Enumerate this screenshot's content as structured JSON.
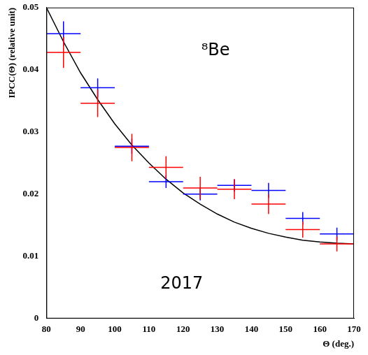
{
  "chart_data": {
    "type": "scatter",
    "x_label": "Θ (deg.)",
    "y_label": "IPCC(Θ) (relative unit)",
    "annotations": [
      "⁸Be",
      "2017"
    ],
    "xlim": [
      80,
      170
    ],
    "xticks": [
      80,
      90,
      100,
      110,
      120,
      130,
      140,
      150,
      160,
      170
    ],
    "ylim": [
      0,
      0.05
    ],
    "yticks": [
      0,
      0.01,
      0.02,
      0.03,
      0.04,
      0.05
    ],
    "grid": false,
    "series": [
      {
        "color": "#0000ff",
        "x": [
          85,
          95,
          105,
          115,
          125,
          135,
          145,
          155,
          165
        ],
        "values": [
          0.0458,
          0.0371,
          0.0277,
          0.022,
          0.02,
          0.0214,
          0.0206,
          0.0161,
          0.0136
        ],
        "x_errors": [
          5,
          5,
          5,
          5,
          5,
          5,
          5,
          5,
          5
        ],
        "errors": [
          0.002,
          0.0015,
          0.0012,
          0.001,
          0.001,
          0.001,
          0.0012,
          0.001,
          0.001
        ]
      },
      {
        "color": "#ff0000",
        "x": [
          85,
          95,
          105,
          115,
          125,
          135,
          145,
          155,
          165
        ],
        "values": [
          0.0428,
          0.0346,
          0.0275,
          0.0243,
          0.021,
          0.0208,
          0.0184,
          0.0143,
          0.012
        ],
        "x_errors": [
          5,
          5,
          5,
          5,
          5,
          5,
          5,
          5,
          5
        ],
        "errors": [
          0.0025,
          0.0022,
          0.0022,
          0.0018,
          0.0018,
          0.0016,
          0.0016,
          0.0013,
          0.0012
        ]
      },
      {
        "type": "line",
        "color": "#000000",
        "x": [
          80,
          85,
          90,
          95,
          100,
          105,
          110,
          115,
          120,
          125,
          130,
          135,
          140,
          145,
          150,
          155,
          160,
          165,
          170
        ],
        "values": [
          0.05,
          0.0445,
          0.0395,
          0.0352,
          0.0313,
          0.0279,
          0.025,
          0.0224,
          0.0202,
          0.0184,
          0.0168,
          0.0155,
          0.0145,
          0.0137,
          0.0131,
          0.0126,
          0.0123,
          0.0121,
          0.012
        ]
      }
    ]
  }
}
